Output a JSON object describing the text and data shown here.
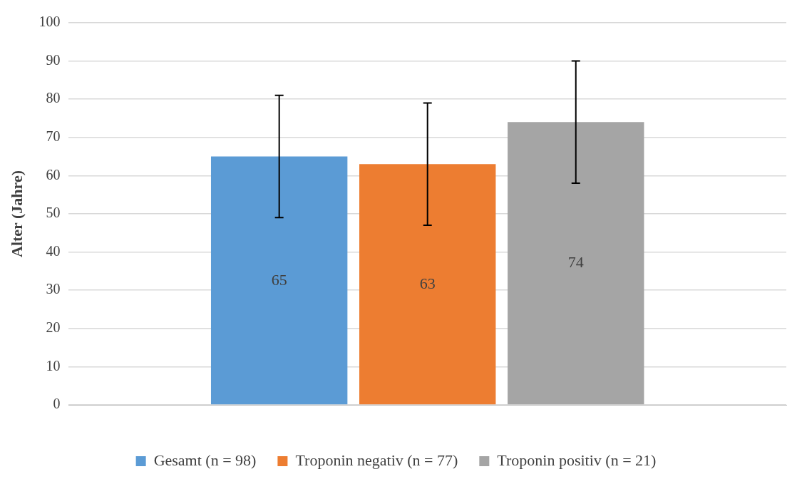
{
  "chart_data": {
    "type": "bar",
    "ylabel": "Alter (Jahre)",
    "categories": [
      null
    ],
    "series": [
      {
        "name": "Gesamt (n = 98)",
        "color": "#5b9bd5",
        "values": [
          65
        ],
        "errors": [
          16
        ]
      },
      {
        "name": "Troponin negativ (n = 77)",
        "color": "#ed7d31",
        "values": [
          63
        ],
        "errors": [
          16
        ]
      },
      {
        "name": "Troponin positiv (n = 21)",
        "color": "#a5a5a5",
        "values": [
          74
        ],
        "errors": [
          16
        ]
      }
    ],
    "ylim": [
      0,
      100
    ],
    "yticks": [
      0,
      10,
      20,
      30,
      40,
      50,
      60,
      70,
      80,
      90,
      100
    ],
    "grid": "y",
    "legend": "bottom",
    "data_labels": true
  }
}
